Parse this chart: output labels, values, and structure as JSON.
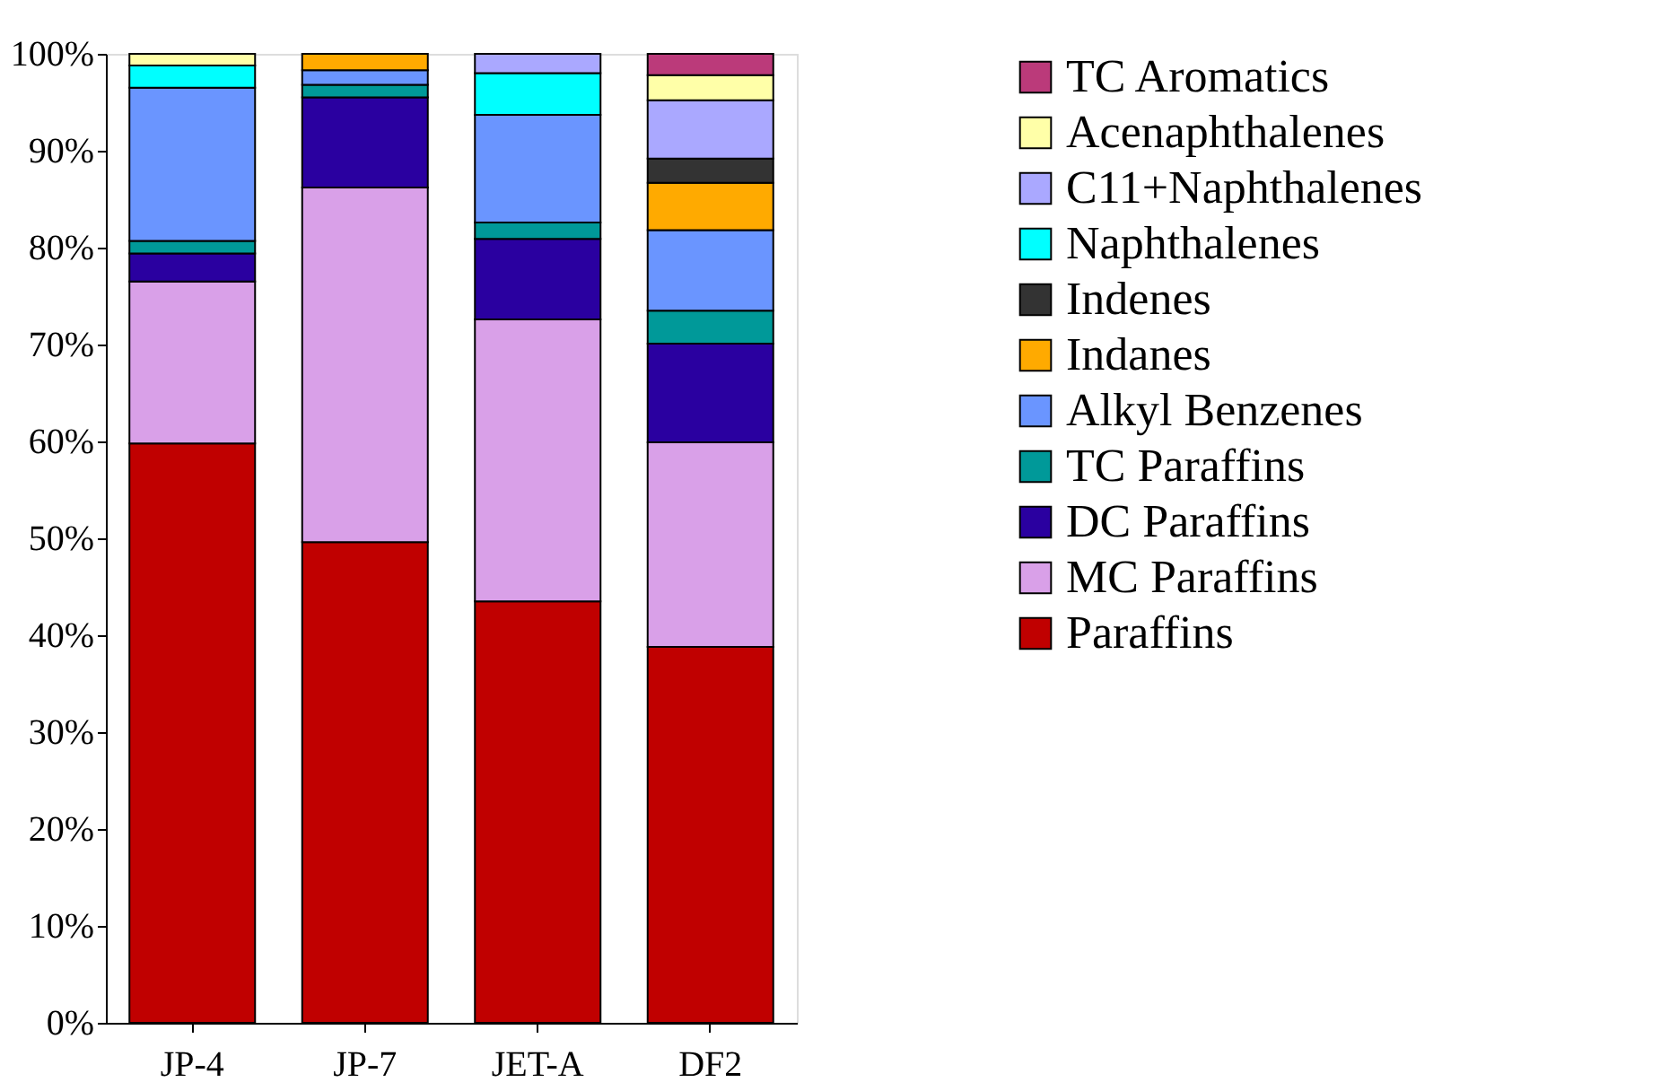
{
  "chart_data": {
    "type": "bar",
    "stacked": true,
    "categories": [
      "JP-4",
      "JP-7",
      "JET-A",
      "DF2"
    ],
    "series": [
      {
        "name": "Paraffins",
        "color": "#c00000",
        "values": [
          59.8,
          49.6,
          43.5,
          38.8
        ]
      },
      {
        "name": "MC Paraffins",
        "color": "#d9a0e8",
        "values": [
          16.7,
          36.6,
          29.1,
          21.1
        ]
      },
      {
        "name": "DC Paraffins",
        "color": "#2a00a0",
        "values": [
          2.9,
          9.3,
          8.3,
          10.2
        ]
      },
      {
        "name": "TC Paraffins",
        "color": "#009999",
        "values": [
          1.3,
          1.3,
          1.7,
          3.4
        ]
      },
      {
        "name": "Alkyl Benzenes",
        "color": "#6a95ff",
        "values": [
          15.8,
          1.5,
          11.1,
          8.3
        ]
      },
      {
        "name": "Indanes",
        "color": "#ffaa00",
        "values": [
          null,
          1.7,
          null,
          4.9
        ]
      },
      {
        "name": "Indenes",
        "color": "#333333",
        "values": [
          null,
          null,
          null,
          2.5
        ]
      },
      {
        "name": "Naphthalenes",
        "color": "#00ffff",
        "values": [
          2.3,
          null,
          4.3,
          null
        ]
      },
      {
        "name": "C11+Naphthalenes",
        "color": "#aaa8ff",
        "values": [
          null,
          null,
          2.0,
          6.0
        ]
      },
      {
        "name": "Acenaphthalenes",
        "color": "#ffffa8",
        "values": [
          1.2,
          null,
          null,
          2.6
        ]
      },
      {
        "name": "TC Aromatics",
        "color": "#bb3a7a",
        "values": [
          null,
          null,
          null,
          2.2
        ]
      }
    ],
    "ylim": [
      0,
      100
    ],
    "yticks": [
      {
        "value": 0,
        "label": "0%"
      },
      {
        "value": 10,
        "label": "10%"
      },
      {
        "value": 20,
        "label": "20%"
      },
      {
        "value": 30,
        "label": "30%"
      },
      {
        "value": 40,
        "label": "40%"
      },
      {
        "value": 50,
        "label": "50%"
      },
      {
        "value": 60,
        "label": "60%"
      },
      {
        "value": 70,
        "label": "70%"
      },
      {
        "value": 80,
        "label": "80%"
      },
      {
        "value": 90,
        "label": "90%"
      },
      {
        "value": 100,
        "label": "100%"
      }
    ],
    "grid": false,
    "legend": "right"
  }
}
